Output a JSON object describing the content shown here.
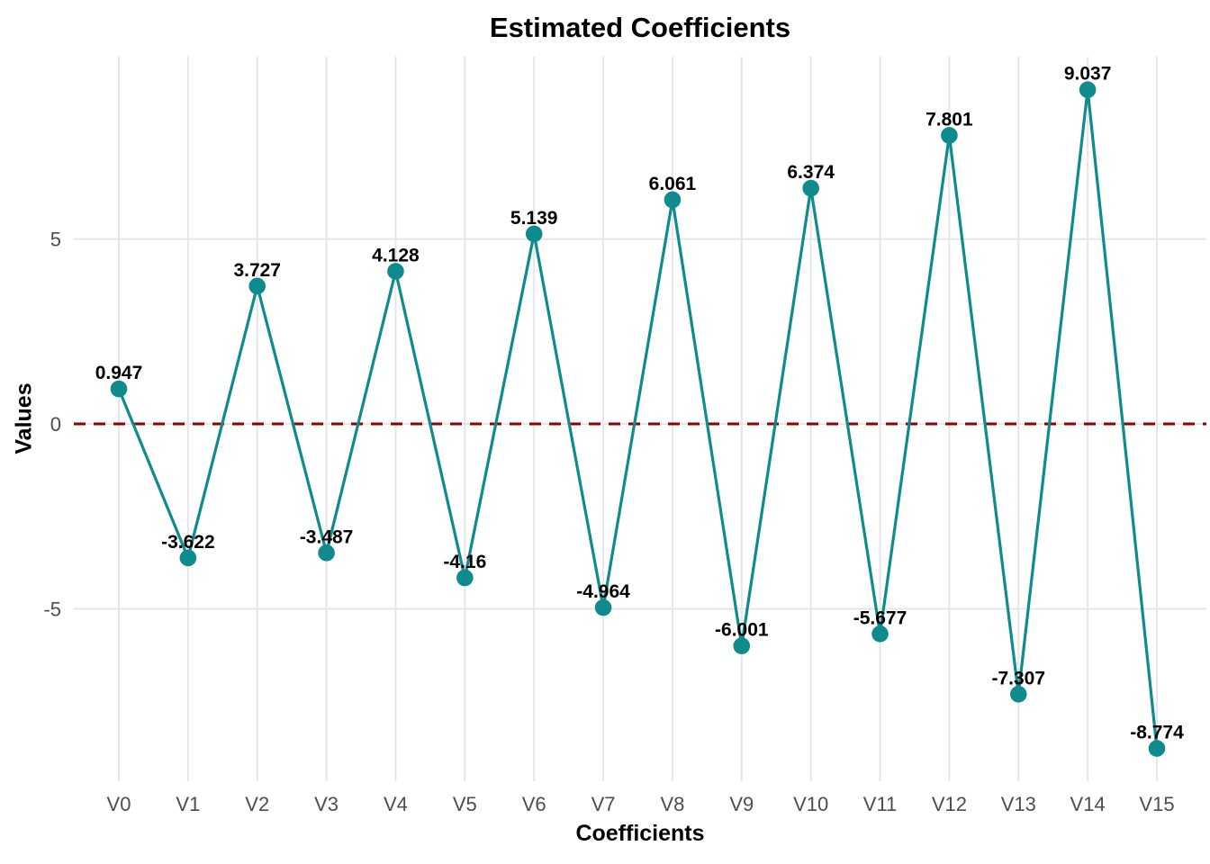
{
  "chart_data": {
    "type": "line",
    "title": "Estimated Coefficients",
    "xlabel": "Coefficients",
    "ylabel": "Values",
    "categories": [
      "V0",
      "V1",
      "V2",
      "V3",
      "V4",
      "V5",
      "V6",
      "V7",
      "V8",
      "V9",
      "V10",
      "V11",
      "V12",
      "V13",
      "V14",
      "V15"
    ],
    "values": [
      0.947,
      -3.622,
      3.727,
      -3.487,
      4.128,
      -4.16,
      5.139,
      -4.964,
      6.061,
      -6.001,
      6.374,
      -5.677,
      7.801,
      -7.307,
      9.037,
      -8.774
    ],
    "point_labels": [
      "0.947",
      "-3.622",
      "3.727",
      "-3.487",
      "4.128",
      "-4.16",
      "5.139",
      "-4.964",
      "6.061",
      "-6.001",
      "6.374",
      "-5.677",
      "7.801",
      "-7.307",
      "9.037",
      "-8.774"
    ],
    "yticks": [
      5,
      0,
      -5
    ],
    "ytick_labels": [
      "5",
      "0",
      "-5"
    ],
    "ylim": [
      -9.66,
      9.93
    ],
    "zero_line": {
      "value": 0,
      "style": "dashed",
      "color": "#8B0000"
    },
    "series_color": "#0F8B8D",
    "grid_color": "#E6E6E6",
    "tick_text_color": "#4D4D4D",
    "grid": "major-only",
    "legend_position": "none"
  }
}
